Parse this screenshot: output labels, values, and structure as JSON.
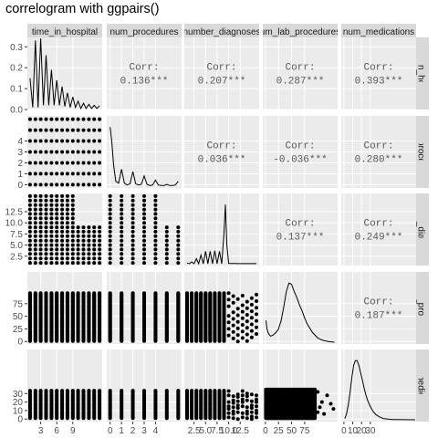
{
  "title": "correlogram with ggpairs()",
  "chart_data": {
    "type": "scatter-matrix",
    "variables": [
      "time_in_hospital",
      "num_procedures",
      "number_diagnoses",
      "num_lab_procedures",
      "num_medications"
    ],
    "column_strip_labels": [
      "time_in_hospital",
      "num_procedures",
      "number_diagnoses",
      "num_lab_procedures",
      "num_medications"
    ],
    "row_strip_labels": [
      "time_in_hospital",
      "num_procedures",
      "number_diagnoses",
      "num_lab_procedures",
      "num_medications"
    ],
    "column_strip_shown": [
      "time_in_hospital",
      "num_procedures",
      "number_diagnoses",
      "um_lab_procedures",
      "num_medications"
    ],
    "row_strip_shown": [
      "time_in_hospital",
      "num_procedures",
      "number_diagnoses",
      "um_lab_procedures",
      "num_medications"
    ],
    "x_ticks": [
      [
        "3",
        "6",
        "9"
      ],
      [
        "0",
        "1",
        "2",
        "3",
        "4"
      ],
      [
        "2.5",
        "5.0",
        "7.5",
        "10.0",
        "12.5"
      ],
      [
        "0",
        "25",
        "50",
        "75"
      ],
      [
        "0",
        "10",
        "20",
        "30"
      ]
    ],
    "x_tick_values": [
      [
        3,
        6,
        9
      ],
      [
        0,
        1,
        2,
        3,
        4
      ],
      [
        2.5,
        5.0,
        7.5,
        10.0,
        12.5
      ],
      [
        0,
        25,
        50,
        75
      ],
      [
        0,
        10,
        20,
        30
      ]
    ],
    "x_ranges": [
      [
        0.5,
        14.5
      ],
      [
        -0.3,
        6.3
      ],
      [
        0.4,
        16.6
      ],
      [
        -5,
        138
      ],
      [
        -3,
        82
      ]
    ],
    "y_ticks_density": [
      "0.0",
      "0.1",
      "0.2",
      "0.3"
    ],
    "y_tick_values_density": [
      0.0,
      0.1,
      0.2,
      0.3
    ],
    "y_range_density": [
      0.0,
      0.345
    ],
    "y_ticks": [
      null,
      [
        "0",
        "1",
        "2",
        "3",
        "4"
      ],
      [
        "2.5",
        "5.0",
        "7.5",
        "10.0",
        "12.5"
      ],
      [
        "0",
        "25",
        "50",
        "75"
      ],
      [
        "0",
        "10",
        "20",
        "30"
      ]
    ],
    "y_tick_values": [
      null,
      [
        0,
        1,
        2,
        3,
        4
      ],
      [
        2.5,
        5.0,
        7.5,
        10.0,
        12.5
      ],
      [
        0,
        25,
        50,
        75
      ],
      [
        0,
        10,
        20,
        30
      ]
    ],
    "correlations": [
      {
        "row": 0,
        "col": 1,
        "label": "Corr:",
        "value": "0.136***"
      },
      {
        "row": 0,
        "col": 2,
        "label": "Corr:",
        "value": "0.207***"
      },
      {
        "row": 0,
        "col": 3,
        "label": "Corr:",
        "value": "0.287***"
      },
      {
        "row": 0,
        "col": 4,
        "label": "Corr:",
        "value": "0.393***"
      },
      {
        "row": 1,
        "col": 2,
        "label": "Corr:",
        "value": "0.036***"
      },
      {
        "row": 1,
        "col": 3,
        "label": "Corr:",
        "value": "-0.036***"
      },
      {
        "row": 1,
        "col": 4,
        "label": "Corr:",
        "value": "0.280***"
      },
      {
        "row": 2,
        "col": 3,
        "label": "Corr:",
        "value": "0.137***"
      },
      {
        "row": 2,
        "col": 4,
        "label": "Corr:",
        "value": "0.249***"
      },
      {
        "row": 3,
        "col": 4,
        "label": "Corr:",
        "value": "0.187***"
      }
    ],
    "densities": [
      {
        "var": "time_in_hospital",
        "x": [
          1,
          1.5,
          2,
          2.5,
          3,
          3.5,
          4,
          4.5,
          5,
          5.5,
          6,
          6.5,
          7,
          7.5,
          8,
          8.5,
          9,
          9.5,
          10,
          10.5,
          11,
          11.5,
          12,
          12.5,
          13,
          13.5,
          14
        ],
        "y": [
          0.15,
          0.01,
          0.33,
          0.01,
          0.34,
          0.02,
          0.26,
          0.02,
          0.19,
          0.02,
          0.14,
          0.02,
          0.11,
          0.015,
          0.08,
          0.01,
          0.06,
          0.01,
          0.04,
          0.005,
          0.03,
          0.005,
          0.025,
          0.005,
          0.02,
          0.005,
          0.018
        ]
      },
      {
        "var": "num_procedures",
        "x": [
          0,
          0.15,
          0.3,
          0.5,
          0.75,
          1.0,
          1.25,
          1.5,
          1.75,
          2.0,
          2.25,
          2.5,
          2.75,
          3.0,
          3.25,
          3.5,
          3.75,
          4.0,
          4.25,
          4.5,
          4.75,
          5.0,
          5.25,
          5.5,
          5.75,
          6.0
        ],
        "y": [
          0.98,
          0.72,
          0.35,
          0.08,
          0.05,
          0.28,
          0.05,
          0.02,
          0.04,
          0.24,
          0.04,
          0.02,
          0.03,
          0.17,
          0.03,
          0.01,
          0.02,
          0.1,
          0.02,
          0.01,
          0.01,
          0.03,
          0.01,
          0.01,
          0.02,
          0.08
        ]
      },
      {
        "var": "number_diagnoses",
        "x": [
          1,
          1.5,
          2,
          2.5,
          3,
          3.5,
          4,
          4.5,
          5,
          5.5,
          6,
          6.5,
          7,
          7.5,
          8,
          8.5,
          9,
          9.3,
          9.6,
          10,
          11,
          12,
          13,
          14,
          15,
          16
        ],
        "y": [
          0.01,
          0.0,
          0.03,
          0.0,
          0.08,
          0.0,
          0.14,
          0.0,
          0.2,
          0.0,
          0.2,
          0.0,
          0.21,
          0.0,
          0.2,
          0.0,
          0.5,
          0.95,
          0.3,
          0.005,
          0.003,
          0.002,
          0.002,
          0.002,
          0.002,
          0.002
        ]
      },
      {
        "var": "num_lab_procedures",
        "x": [
          1,
          3,
          6,
          10,
          15,
          20,
          25,
          30,
          35,
          40,
          45,
          50,
          55,
          60,
          65,
          70,
          75,
          80,
          90,
          100,
          110,
          120,
          132
        ],
        "y": [
          0.36,
          0.22,
          0.14,
          0.1,
          0.12,
          0.16,
          0.22,
          0.36,
          0.58,
          0.84,
          0.98,
          0.96,
          0.84,
          0.74,
          0.62,
          0.52,
          0.4,
          0.3,
          0.16,
          0.07,
          0.03,
          0.01,
          0.0
        ]
      },
      {
        "var": "num_medications",
        "x": [
          1,
          3,
          5,
          7,
          9,
          11,
          13,
          15,
          17,
          19,
          21,
          23,
          25,
          27,
          29,
          31,
          33,
          36,
          40,
          45,
          50,
          55,
          60,
          70,
          81
        ],
        "y": [
          0.02,
          0.1,
          0.25,
          0.45,
          0.7,
          0.9,
          0.98,
          0.98,
          0.9,
          0.78,
          0.65,
          0.52,
          0.41,
          0.32,
          0.25,
          0.19,
          0.14,
          0.09,
          0.05,
          0.02,
          0.01,
          0.005,
          0.003,
          0.001,
          0.0
        ]
      }
    ],
    "scatter_grid": {
      "time_in_hospital": [
        1,
        2,
        3,
        4,
        5,
        6,
        7,
        8,
        9,
        10,
        11,
        12,
        13,
        14
      ],
      "num_procedures": [
        0,
        1,
        2,
        3,
        4,
        5,
        6
      ],
      "number_diagnoses": [
        1,
        2,
        3,
        4,
        5,
        6,
        7,
        8,
        9,
        10,
        11,
        12,
        13,
        14,
        15,
        16
      ]
    },
    "grid": true,
    "facet_strip_fill": "#d9d9d9",
    "panel_fill": "#ebebeb",
    "point_color": "#000000",
    "line_color": "#000000"
  }
}
